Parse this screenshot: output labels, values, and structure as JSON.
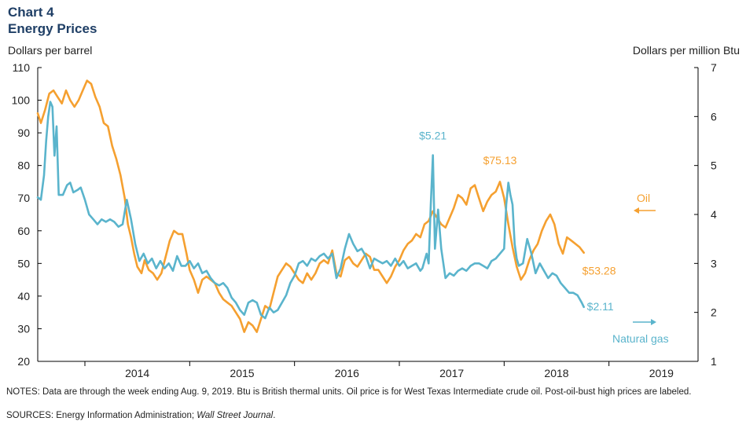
{
  "header": {
    "chart_label": "Chart 4",
    "title": "Energy Prices"
  },
  "footer": {
    "notes": "NOTES: Data are through the week ending Aug. 9, 2019. Btu is British thermal units. Oil price is for West Texas Intermediate crude oil. Post-oil-bust high prices are labeled.",
    "sources_prefix": "SOURCES: Energy Information  Administration; ",
    "sources_italic": "Wall Street Journal",
    "sources_suffix": "."
  },
  "chart_data": {
    "type": "line",
    "ylabel": "Dollars per barrel",
    "y2label": "Dollars per million Btu",
    "ylim": [
      20,
      110
    ],
    "y2lim": [
      1,
      7
    ],
    "yticks": [
      20,
      30,
      40,
      50,
      60,
      70,
      80,
      90,
      100,
      110
    ],
    "y2ticks": [
      1,
      2,
      3,
      4,
      5,
      6,
      7
    ],
    "xlim": [
      2013.55,
      2019.85
    ],
    "xlabels": [
      "2014",
      "2015",
      "2016",
      "2017",
      "2018",
      "2019"
    ],
    "grid": false,
    "colors": {
      "oil": "#f5a030",
      "gas": "#5ab4cc"
    },
    "series": [
      {
        "name": "Oil",
        "axis": "left",
        "points": [
          [
            2013.55,
            96
          ],
          [
            2013.58,
            93
          ],
          [
            2013.62,
            97
          ],
          [
            2013.66,
            102
          ],
          [
            2013.7,
            103
          ],
          [
            2013.74,
            101
          ],
          [
            2013.78,
            99
          ],
          [
            2013.82,
            103
          ],
          [
            2013.86,
            100
          ],
          [
            2013.9,
            98
          ],
          [
            2013.94,
            100
          ],
          [
            2013.98,
            103
          ],
          [
            2014.02,
            106
          ],
          [
            2014.06,
            105
          ],
          [
            2014.1,
            101
          ],
          [
            2014.14,
            98
          ],
          [
            2014.18,
            93
          ],
          [
            2014.22,
            92
          ],
          [
            2014.26,
            86
          ],
          [
            2014.3,
            82
          ],
          [
            2014.34,
            77
          ],
          [
            2014.38,
            70
          ],
          [
            2014.41,
            62
          ],
          [
            2014.44,
            58
          ],
          [
            2014.47,
            53
          ],
          [
            2014.5,
            49
          ],
          [
            2014.54,
            47
          ],
          [
            2014.57,
            51
          ],
          [
            2014.61,
            48
          ],
          [
            2014.65,
            47
          ],
          [
            2014.69,
            45
          ],
          [
            2014.73,
            47
          ],
          [
            2014.77,
            52
          ],
          [
            2014.81,
            57
          ],
          [
            2014.85,
            60
          ],
          [
            2014.89,
            59
          ],
          [
            2014.93,
            59
          ],
          [
            2014.97,
            53
          ],
          [
            2015.0,
            48
          ],
          [
            2015.04,
            45
          ],
          [
            2015.08,
            41
          ],
          [
            2015.12,
            45
          ],
          [
            2015.16,
            46
          ],
          [
            2015.2,
            45
          ],
          [
            2015.24,
            44
          ],
          [
            2015.28,
            41
          ],
          [
            2015.32,
            39
          ],
          [
            2015.36,
            38
          ],
          [
            2015.4,
            37
          ],
          [
            2015.44,
            35
          ],
          [
            2015.48,
            33
          ],
          [
            2015.52,
            29
          ],
          [
            2015.56,
            32
          ],
          [
            2015.6,
            31
          ],
          [
            2015.64,
            29
          ],
          [
            2015.68,
            33
          ],
          [
            2015.72,
            37
          ],
          [
            2015.76,
            36
          ],
          [
            2015.8,
            41
          ],
          [
            2015.84,
            46
          ],
          [
            2015.88,
            48
          ],
          [
            2015.92,
            50
          ],
          [
            2015.96,
            49
          ],
          [
            2016.0,
            47
          ],
          [
            2016.04,
            45
          ],
          [
            2016.08,
            44
          ],
          [
            2016.12,
            47
          ],
          [
            2016.16,
            45
          ],
          [
            2016.2,
            47
          ],
          [
            2016.24,
            50
          ],
          [
            2016.28,
            51
          ],
          [
            2016.32,
            50
          ],
          [
            2016.36,
            54
          ],
          [
            2016.4,
            47
          ],
          [
            2016.44,
            46
          ],
          [
            2016.48,
            51
          ],
          [
            2016.52,
            52
          ],
          [
            2016.56,
            50
          ],
          [
            2016.6,
            49
          ],
          [
            2016.64,
            51
          ],
          [
            2016.68,
            53
          ],
          [
            2016.72,
            52
          ],
          [
            2016.76,
            48
          ],
          [
            2016.8,
            48
          ],
          [
            2016.84,
            46
          ],
          [
            2016.88,
            44
          ],
          [
            2016.92,
            46
          ],
          [
            2016.96,
            49
          ],
          [
            2017.0,
            51
          ],
          [
            2017.04,
            54
          ],
          [
            2017.08,
            56
          ],
          [
            2017.12,
            57
          ],
          [
            2017.16,
            59
          ],
          [
            2017.2,
            58
          ],
          [
            2017.24,
            62
          ],
          [
            2017.28,
            63
          ],
          [
            2017.32,
            66
          ],
          [
            2017.36,
            64
          ],
          [
            2017.4,
            62
          ],
          [
            2017.44,
            61
          ],
          [
            2017.48,
            64
          ],
          [
            2017.52,
            67
          ],
          [
            2017.56,
            71
          ],
          [
            2017.6,
            70
          ],
          [
            2017.64,
            68
          ],
          [
            2017.68,
            73
          ],
          [
            2017.72,
            74
          ],
          [
            2017.76,
            70
          ],
          [
            2017.8,
            66
          ],
          [
            2017.84,
            69
          ],
          [
            2017.88,
            71
          ],
          [
            2017.92,
            72
          ],
          [
            2017.96,
            75
          ],
          [
            2018.0,
            70
          ],
          [
            2018.04,
            62
          ],
          [
            2018.08,
            55
          ],
          [
            2018.12,
            49
          ],
          [
            2018.16,
            45
          ],
          [
            2018.2,
            47
          ],
          [
            2018.24,
            51
          ],
          [
            2018.28,
            54
          ],
          [
            2018.32,
            56
          ],
          [
            2018.36,
            60
          ],
          [
            2018.4,
            63
          ],
          [
            2018.44,
            65
          ],
          [
            2018.48,
            62
          ],
          [
            2018.52,
            56
          ],
          [
            2018.56,
            53
          ],
          [
            2018.6,
            58
          ],
          [
            2018.64,
            57
          ],
          [
            2018.68,
            56
          ],
          [
            2018.72,
            55
          ],
          [
            2018.76,
            53.28
          ]
        ]
      },
      {
        "name": "Natural gas",
        "axis": "right",
        "points": [
          [
            2013.55,
            4.35
          ],
          [
            2013.58,
            4.3
          ],
          [
            2013.61,
            4.8
          ],
          [
            2013.63,
            5.5
          ],
          [
            2013.65,
            6.0
          ],
          [
            2013.67,
            6.3
          ],
          [
            2013.69,
            6.2
          ],
          [
            2013.71,
            5.2
          ],
          [
            2013.73,
            5.8
          ],
          [
            2013.75,
            4.4
          ],
          [
            2013.79,
            4.4
          ],
          [
            2013.83,
            4.6
          ],
          [
            2013.86,
            4.65
          ],
          [
            2013.89,
            4.45
          ],
          [
            2013.93,
            4.5
          ],
          [
            2013.96,
            4.55
          ],
          [
            2014.0,
            4.3
          ],
          [
            2014.04,
            4.0
          ],
          [
            2014.08,
            3.9
          ],
          [
            2014.12,
            3.8
          ],
          [
            2014.16,
            3.9
          ],
          [
            2014.2,
            3.85
          ],
          [
            2014.24,
            3.9
          ],
          [
            2014.28,
            3.85
          ],
          [
            2014.32,
            3.75
          ],
          [
            2014.36,
            3.8
          ],
          [
            2014.4,
            4.3
          ],
          [
            2014.44,
            3.9
          ],
          [
            2014.48,
            3.4
          ],
          [
            2014.52,
            3.05
          ],
          [
            2014.56,
            3.2
          ],
          [
            2014.6,
            3.0
          ],
          [
            2014.64,
            3.1
          ],
          [
            2014.68,
            2.9
          ],
          [
            2014.72,
            3.05
          ],
          [
            2014.76,
            2.9
          ],
          [
            2014.8,
            3.0
          ],
          [
            2014.84,
            2.85
          ],
          [
            2014.88,
            3.15
          ],
          [
            2014.92,
            2.95
          ],
          [
            2014.96,
            2.95
          ],
          [
            2015.0,
            3.05
          ],
          [
            2015.04,
            2.9
          ],
          [
            2015.08,
            3.0
          ],
          [
            2015.12,
            2.8
          ],
          [
            2015.16,
            2.85
          ],
          [
            2015.2,
            2.7
          ],
          [
            2015.24,
            2.6
          ],
          [
            2015.28,
            2.55
          ],
          [
            2015.32,
            2.6
          ],
          [
            2015.36,
            2.5
          ],
          [
            2015.4,
            2.3
          ],
          [
            2015.44,
            2.2
          ],
          [
            2015.48,
            2.05
          ],
          [
            2015.52,
            1.95
          ],
          [
            2015.56,
            2.2
          ],
          [
            2015.6,
            2.25
          ],
          [
            2015.64,
            2.2
          ],
          [
            2015.68,
            1.95
          ],
          [
            2015.72,
            1.88
          ],
          [
            2015.76,
            2.1
          ],
          [
            2015.8,
            2.0
          ],
          [
            2015.84,
            2.05
          ],
          [
            2015.88,
            2.2
          ],
          [
            2015.92,
            2.35
          ],
          [
            2015.96,
            2.6
          ],
          [
            2016.0,
            2.75
          ],
          [
            2016.04,
            3.0
          ],
          [
            2016.08,
            3.05
          ],
          [
            2016.12,
            2.95
          ],
          [
            2016.16,
            3.1
          ],
          [
            2016.2,
            3.05
          ],
          [
            2016.24,
            3.15
          ],
          [
            2016.28,
            3.2
          ],
          [
            2016.32,
            3.1
          ],
          [
            2016.36,
            3.2
          ],
          [
            2016.4,
            2.7
          ],
          [
            2016.44,
            2.9
          ],
          [
            2016.48,
            3.3
          ],
          [
            2016.52,
            3.6
          ],
          [
            2016.56,
            3.4
          ],
          [
            2016.6,
            3.25
          ],
          [
            2016.64,
            3.3
          ],
          [
            2016.68,
            3.15
          ],
          [
            2016.72,
            2.9
          ],
          [
            2016.76,
            3.1
          ],
          [
            2016.8,
            3.05
          ],
          [
            2016.84,
            3.0
          ],
          [
            2016.88,
            3.05
          ],
          [
            2016.92,
            2.95
          ],
          [
            2016.96,
            3.1
          ],
          [
            2017.0,
            2.95
          ],
          [
            2017.04,
            3.05
          ],
          [
            2017.08,
            2.9
          ],
          [
            2017.12,
            2.95
          ],
          [
            2017.16,
            3.0
          ],
          [
            2017.2,
            2.85
          ],
          [
            2017.22,
            2.9
          ],
          [
            2017.26,
            3.2
          ],
          [
            2017.28,
            3.0
          ],
          [
            2017.3,
            4.2
          ],
          [
            2017.32,
            5.21
          ],
          [
            2017.34,
            3.3
          ],
          [
            2017.37,
            4.1
          ],
          [
            2017.4,
            3.3
          ],
          [
            2017.44,
            2.7
          ],
          [
            2017.48,
            2.8
          ],
          [
            2017.52,
            2.75
          ],
          [
            2017.56,
            2.85
          ],
          [
            2017.6,
            2.9
          ],
          [
            2017.64,
            2.85
          ],
          [
            2017.68,
            2.95
          ],
          [
            2017.72,
            3.0
          ],
          [
            2017.76,
            3.0
          ],
          [
            2017.8,
            2.95
          ],
          [
            2017.84,
            2.9
          ],
          [
            2017.88,
            3.05
          ],
          [
            2017.92,
            3.1
          ],
          [
            2017.96,
            3.2
          ],
          [
            2018.0,
            3.3
          ],
          [
            2018.02,
            4.2
          ],
          [
            2018.04,
            4.65
          ],
          [
            2018.06,
            4.4
          ],
          [
            2018.08,
            4.2
          ],
          [
            2018.1,
            3.4
          ],
          [
            2018.12,
            3.1
          ],
          [
            2018.14,
            2.95
          ],
          [
            2018.18,
            3.0
          ],
          [
            2018.22,
            3.5
          ],
          [
            2018.26,
            3.2
          ],
          [
            2018.3,
            2.8
          ],
          [
            2018.34,
            3.0
          ],
          [
            2018.38,
            2.85
          ],
          [
            2018.42,
            2.7
          ],
          [
            2018.46,
            2.8
          ],
          [
            2018.5,
            2.75
          ],
          [
            2018.54,
            2.6
          ],
          [
            2018.58,
            2.5
          ],
          [
            2018.62,
            2.4
          ],
          [
            2018.66,
            2.4
          ],
          [
            2018.7,
            2.35
          ],
          [
            2018.74,
            2.2
          ],
          [
            2018.76,
            2.11
          ]
        ]
      }
    ],
    "annotations": [
      {
        "text": "$5.21",
        "series": "Natural gas",
        "x": 2017.32,
        "y": 5.21
      },
      {
        "text": "$75.13",
        "series": "Oil",
        "x": 2017.96,
        "y": 75.13
      },
      {
        "text": "$53.28",
        "series": "Oil",
        "x": 2018.76,
        "y": 53.28
      },
      {
        "text": "$2.11",
        "series": "Natural gas",
        "x": 2018.76,
        "y": 2.11
      }
    ],
    "legend": [
      {
        "text": "Oil",
        "arrow": "left"
      },
      {
        "text": "Natural gas",
        "arrow": "right"
      }
    ]
  }
}
